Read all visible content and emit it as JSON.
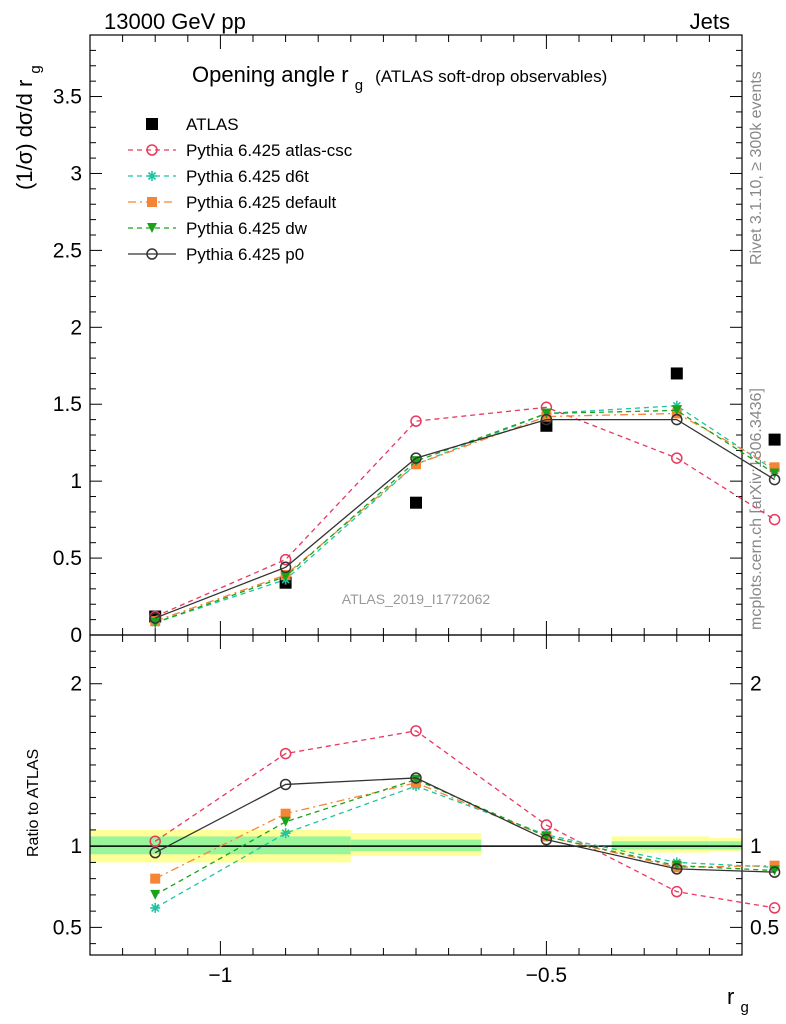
{
  "header": {
    "left": "13000 GeV pp",
    "right": "Jets"
  },
  "side_labels": {
    "rivet": "Rivet 3.1.10, ≥ 300k events",
    "mcplots": "mcplots.cern.ch [arXiv:1306.3436]"
  },
  "chart_data": [
    {
      "panel": "main",
      "type": "line",
      "title_main": "Opening angle r",
      "title_sub": "g",
      "title_rest": "(ATLAS soft-drop observables)",
      "ylabel": "(1/σ) dσ/d r",
      "ylabel_sub": "g",
      "analysis_label": "ATLAS_2019_I1772062",
      "xlim": [
        -1.2,
        -0.2
      ],
      "ylim": [
        0,
        3.9
      ],
      "log_y": false,
      "yticks": [
        "0",
        "0.5",
        "1",
        "1.5",
        "2",
        "2.5",
        "3",
        "3.5"
      ],
      "x": [
        -1.1,
        -0.9,
        -0.7,
        -0.5,
        -0.3,
        -0.15
      ],
      "series": [
        {
          "name": "ATLAS",
          "color": "#000000",
          "marker": "square",
          "line": "none",
          "values": [
            0.12,
            0.34,
            0.86,
            1.36,
            1.7,
            1.27
          ]
        },
        {
          "name": "Pythia 6.425 atlas-csc",
          "color": "#e8385e",
          "marker": "open-circle",
          "line": "dashed",
          "values": [
            0.12,
            0.49,
            1.39,
            1.48,
            1.15,
            0.75
          ]
        },
        {
          "name": "Pythia 6.425 d6t",
          "color": "#1fc4a0",
          "marker": "star",
          "line": "dashed",
          "values": [
            0.08,
            0.36,
            1.11,
            1.44,
            1.49,
            1.07
          ]
        },
        {
          "name": "Pythia 6.425 default",
          "color": "#f58536",
          "marker": "filled-square",
          "line": "dashdot",
          "values": [
            0.09,
            0.39,
            1.11,
            1.42,
            1.44,
            1.09
          ]
        },
        {
          "name": "Pythia 6.425 dw",
          "color": "#1aa31a",
          "marker": "filled-triangle-down",
          "line": "dashed",
          "values": [
            0.08,
            0.38,
            1.13,
            1.44,
            1.46,
            1.05
          ]
        },
        {
          "name": "Pythia 6.425 p0",
          "color": "#333333",
          "marker": "open-circle",
          "line": "solid",
          "values": [
            0.11,
            0.44,
            1.15,
            1.4,
            1.4,
            1.01
          ]
        }
      ]
    },
    {
      "panel": "ratio",
      "type": "line",
      "ylabel": "Ratio to ATLAS",
      "xlabel": "r",
      "xlabel_sub": "g",
      "xlim": [
        -1.2,
        -0.2
      ],
      "ylim": [
        0.33,
        2.3
      ],
      "xticks": [
        "−1",
        "−0.5"
      ],
      "yticks": [
        "0.5",
        "1",
        "2"
      ],
      "x": [
        -1.1,
        -0.9,
        -0.7,
        -0.5,
        -0.3,
        -0.15
      ],
      "bands": [
        {
          "x0": -1.2,
          "x1": -0.8,
          "yellow": [
            0.9,
            1.1
          ],
          "green": [
            0.95,
            1.06
          ]
        },
        {
          "x0": -0.8,
          "x1": -0.6,
          "yellow": [
            0.94,
            1.08
          ],
          "green": [
            0.97,
            1.04
          ]
        },
        {
          "x0": -0.4,
          "x1": -0.25,
          "yellow": [
            0.96,
            1.06
          ],
          "green": [
            0.98,
            1.03
          ]
        },
        {
          "x0": -0.25,
          "x1": -0.2,
          "yellow": [
            0.97,
            1.05
          ],
          "green": [
            0.98,
            1.03
          ]
        }
      ],
      "series": [
        {
          "name": "Pythia 6.425 atlas-csc",
          "color": "#e8385e",
          "marker": "open-circle",
          "line": "dashed",
          "values": [
            1.03,
            1.57,
            1.71,
            1.13,
            0.72,
            0.62
          ]
        },
        {
          "name": "Pythia 6.425 d6t",
          "color": "#1fc4a0",
          "marker": "star",
          "line": "dashed",
          "values": [
            0.62,
            1.08,
            1.37,
            1.07,
            0.9,
            0.87
          ]
        },
        {
          "name": "Pythia 6.425 default",
          "color": "#f58536",
          "marker": "filled-square",
          "line": "dashdot",
          "values": [
            0.8,
            1.2,
            1.39,
            1.06,
            0.87,
            0.88
          ]
        },
        {
          "name": "Pythia 6.425 dw",
          "color": "#1aa31a",
          "marker": "filled-triangle-down",
          "line": "dashed",
          "values": [
            0.7,
            1.15,
            1.41,
            1.06,
            0.88,
            0.85
          ]
        },
        {
          "name": "Pythia 6.425 p0",
          "color": "#333333",
          "marker": "open-circle",
          "line": "solid",
          "values": [
            0.96,
            1.38,
            1.42,
            1.04,
            0.86,
            0.84
          ]
        }
      ]
    }
  ]
}
